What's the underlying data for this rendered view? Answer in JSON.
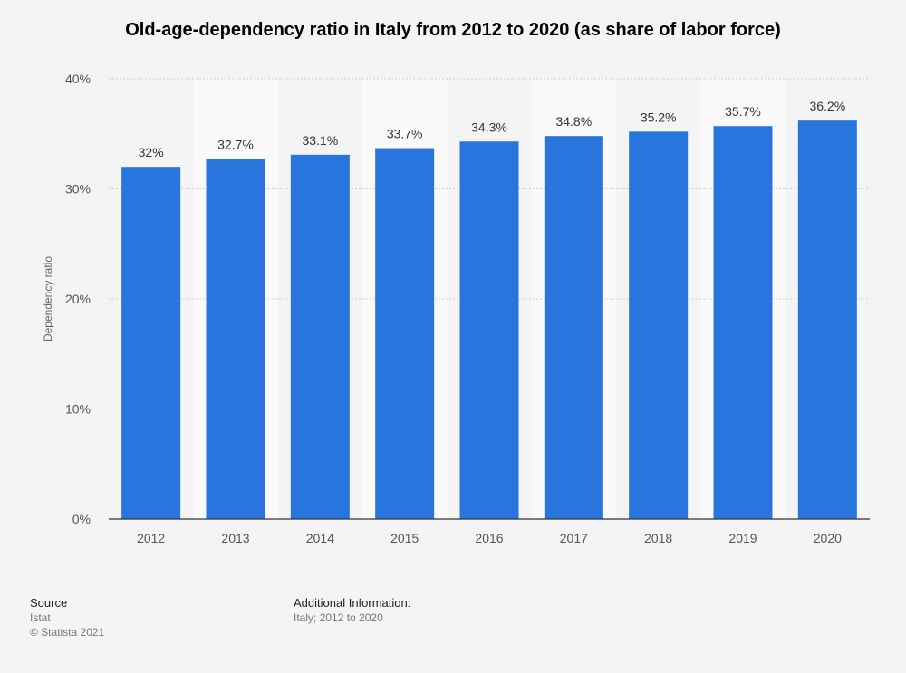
{
  "chart_data": {
    "type": "bar",
    "title": "Old-age-dependency ratio in Italy from 2012 to 2020 (as share of labor force)",
    "xlabel": "",
    "ylabel": "Dependency ratio",
    "categories": [
      "2012",
      "2013",
      "2014",
      "2015",
      "2016",
      "2017",
      "2018",
      "2019",
      "2020"
    ],
    "values": [
      32,
      32.7,
      33.1,
      33.7,
      34.3,
      34.8,
      35.2,
      35.7,
      36.2
    ],
    "value_labels": [
      "32%",
      "32.7%",
      "33.1%",
      "33.7%",
      "34.3%",
      "34.8%",
      "35.2%",
      "35.7%",
      "36.2%"
    ],
    "ylim": [
      0,
      40
    ],
    "yticks": [
      0,
      10,
      20,
      30,
      40
    ],
    "ytick_labels": [
      "0%",
      "10%",
      "20%",
      "30%",
      "40%"
    ],
    "grid": true,
    "bar_color": "#2775dd"
  },
  "footer": {
    "source_heading": "Source",
    "source_name": "Istat",
    "copyright": "© Statista 2021",
    "info_heading": "Additional Information:",
    "info_text": "Italy; 2012 to 2020"
  }
}
